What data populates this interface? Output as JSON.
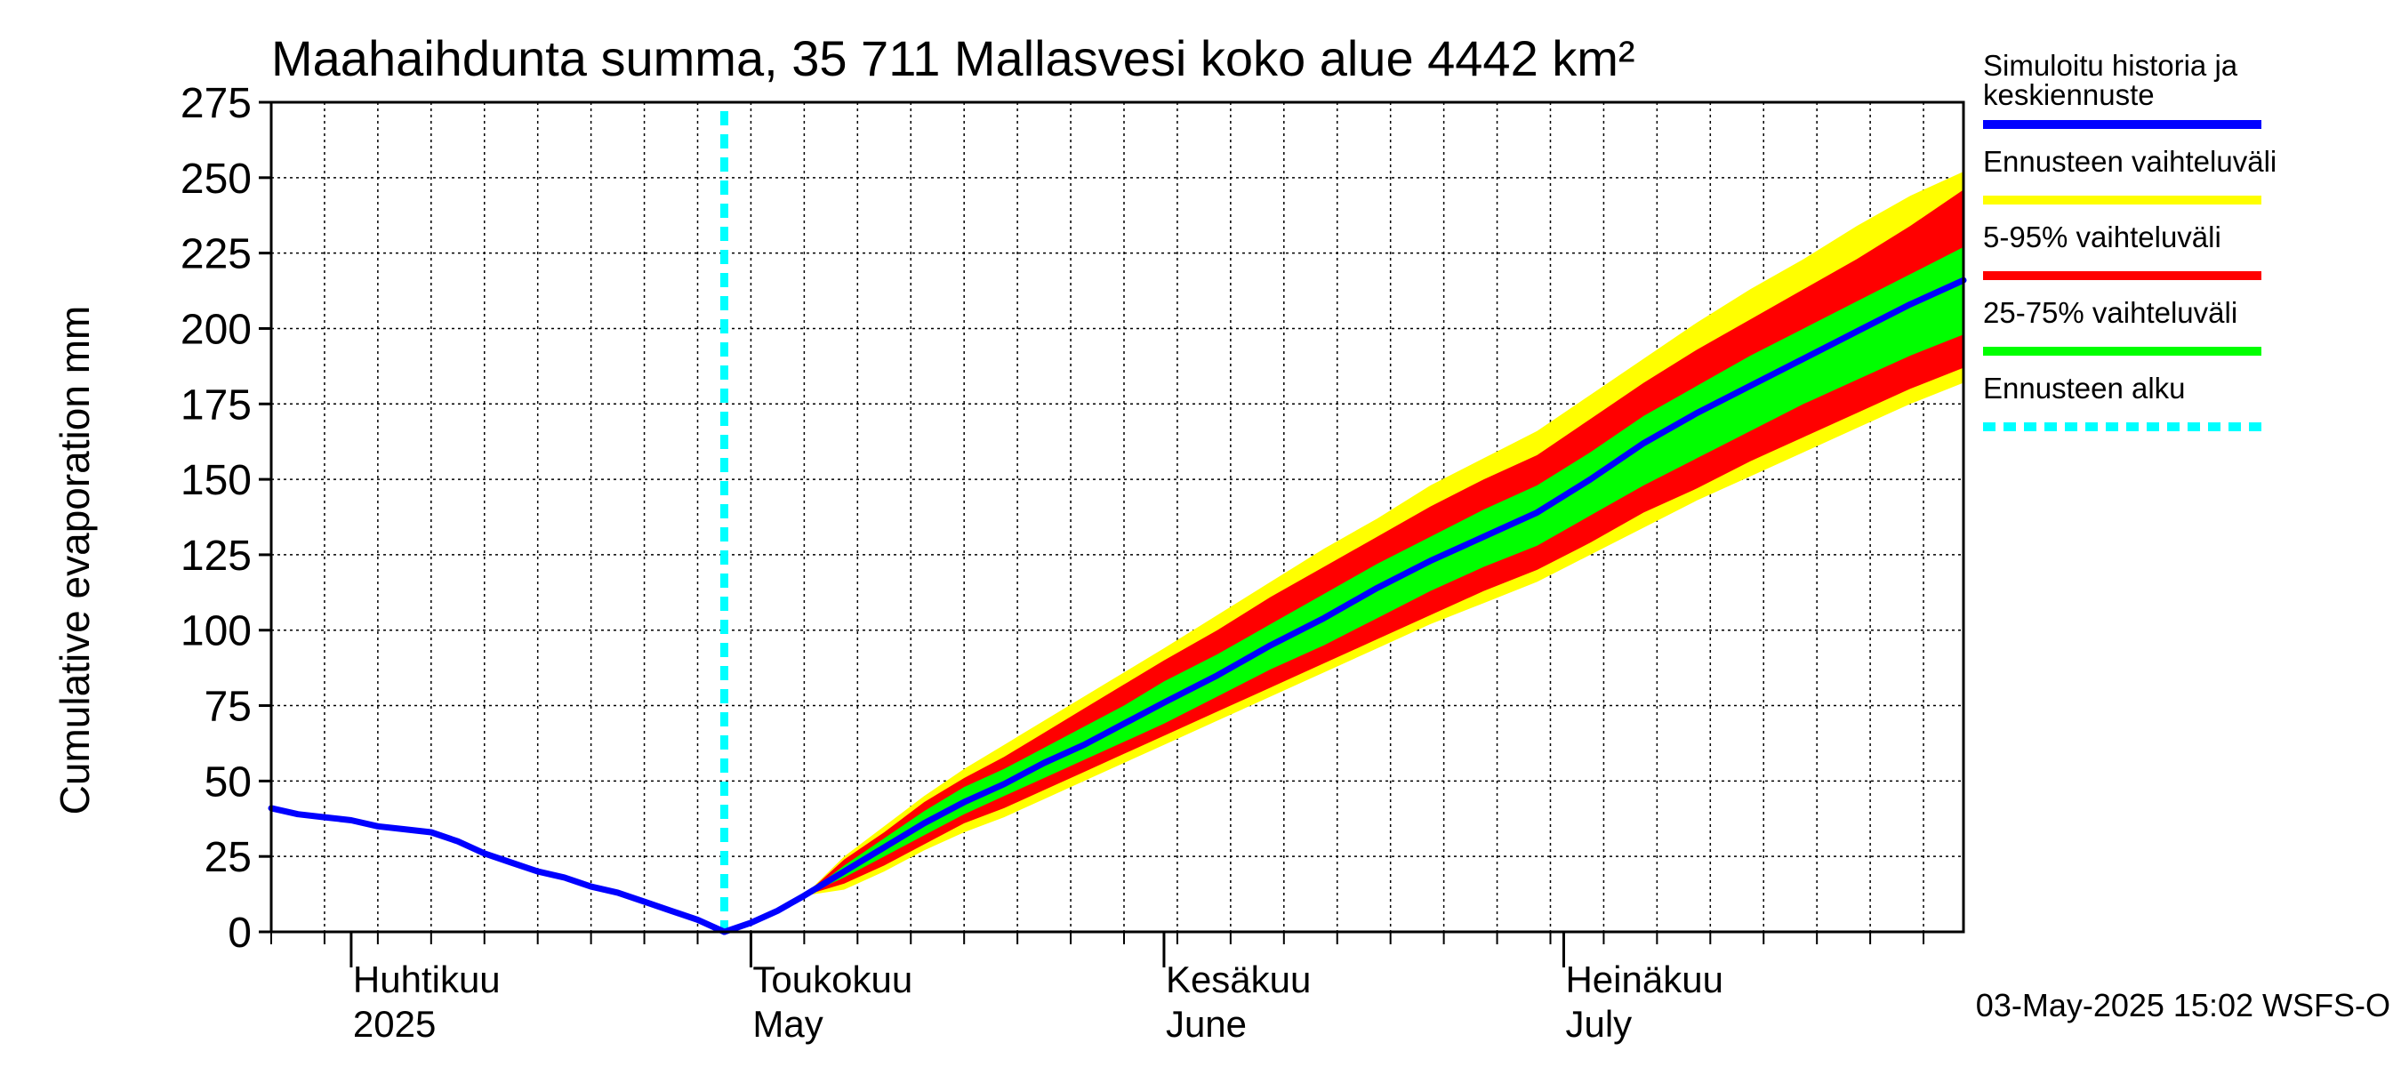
{
  "colors": {
    "background": "#ffffff",
    "grid": "#000000",
    "simulated": "#0000ff",
    "full_range": "#ffff00",
    "p5_95": "#ff0000",
    "p25_75": "#00ff00",
    "forecast_start": "#00ffff"
  },
  "chart_data": {
    "type": "area",
    "title": "Maahaihdunta summa, 35 711 Mallasvesi koko alue 4442 km²",
    "ylabel": "Cumulative evaporation   mm",
    "xlabel": "",
    "ylim": [
      0,
      275
    ],
    "yticks": [
      0,
      25,
      50,
      75,
      100,
      125,
      150,
      175,
      200,
      225,
      250,
      275
    ],
    "xlim": [
      "2025-03-26",
      "2025-07-31"
    ],
    "grid": true,
    "legend_position": "right",
    "x_axis_labels": [
      {
        "date": "2025-04-01",
        "line1": "Huhtikuu",
        "line2": "2025"
      },
      {
        "date": "2025-05-01",
        "line1": "Toukokuu",
        "line2": "May"
      },
      {
        "date": "2025-06-01",
        "line1": "Kesäkuu",
        "line2": "June"
      },
      {
        "date": "2025-07-01",
        "line1": "Heinäkuu",
        "line2": "July"
      }
    ],
    "forecast_start": "2025-04-29",
    "legend": [
      {
        "label_line1": "Simuloitu historia ja",
        "label_line2": "keskiennuste",
        "color_key": "simulated",
        "dash": false
      },
      {
        "label_line1": "Ennusteen vaihteluväli",
        "label_line2": "",
        "color_key": "full_range",
        "dash": false
      },
      {
        "label_line1": "5-95% vaihteluväli",
        "label_line2": "",
        "color_key": "p5_95",
        "dash": false
      },
      {
        "label_line1": "25-75% vaihteluväli",
        "label_line2": "",
        "color_key": "p25_75",
        "dash": false
      },
      {
        "label_line1": "Ennusteen alku",
        "label_line2": "",
        "color_key": "forecast_start",
        "dash": true
      }
    ],
    "history": {
      "x": [
        "2025-03-26",
        "2025-03-28",
        "2025-03-30",
        "2025-04-01",
        "2025-04-03",
        "2025-04-05",
        "2025-04-07",
        "2025-04-09",
        "2025-04-11",
        "2025-04-13",
        "2025-04-15",
        "2025-04-17",
        "2025-04-19",
        "2025-04-21",
        "2025-04-23",
        "2025-04-25",
        "2025-04-27",
        "2025-04-29"
      ],
      "y": [
        41,
        39,
        38,
        37,
        35,
        34,
        33,
        30,
        26,
        23,
        20,
        18,
        15,
        13,
        10,
        7,
        4,
        0
      ]
    },
    "forecast": {
      "x": [
        "2025-04-29",
        "2025-05-01",
        "2025-05-03",
        "2025-05-05",
        "2025-05-08",
        "2025-05-11",
        "2025-05-14",
        "2025-05-17",
        "2025-05-20",
        "2025-05-23",
        "2025-05-26",
        "2025-05-29",
        "2025-06-01",
        "2025-06-05",
        "2025-06-09",
        "2025-06-13",
        "2025-06-17",
        "2025-06-21",
        "2025-06-25",
        "2025-06-29",
        "2025-07-03",
        "2025-07-07",
        "2025-07-11",
        "2025-07-15",
        "2025-07-19",
        "2025-07-23",
        "2025-07-27",
        "2025-07-31"
      ],
      "median": [
        0,
        3,
        7,
        12,
        20,
        28,
        36,
        43,
        49,
        56,
        62,
        69,
        76,
        85,
        95,
        104,
        114,
        123,
        131,
        139,
        150,
        162,
        172,
        181,
        190,
        199,
        208,
        216
      ],
      "p25": [
        0,
        3,
        7,
        12,
        18,
        25,
        32,
        39,
        45,
        51,
        57,
        63,
        69,
        78,
        87,
        95,
        104,
        113,
        121,
        128,
        138,
        148,
        157,
        166,
        175,
        183,
        191,
        198
      ],
      "p75": [
        0,
        3,
        7,
        12,
        22,
        31,
        40,
        48,
        54,
        61,
        68,
        75,
        83,
        92,
        102,
        112,
        122,
        131,
        140,
        148,
        159,
        171,
        181,
        191,
        200,
        209,
        218,
        227
      ],
      "p5": [
        0,
        3,
        7,
        12,
        16,
        22,
        29,
        36,
        41,
        47,
        53,
        59,
        65,
        73,
        81,
        89,
        97,
        105,
        113,
        120,
        129,
        139,
        147,
        156,
        164,
        172,
        180,
        187
      ],
      "p95": [
        0,
        3,
        7,
        12,
        24,
        33,
        43,
        51,
        58,
        66,
        74,
        82,
        90,
        100,
        111,
        121,
        131,
        141,
        150,
        158,
        170,
        182,
        193,
        203,
        213,
        223,
        234,
        246
      ],
      "min": [
        0,
        3,
        7,
        12,
        14,
        20,
        27,
        33,
        38,
        44,
        50,
        56,
        62,
        70,
        78,
        86,
        94,
        102,
        109,
        116,
        125,
        134,
        143,
        151,
        159,
        167,
        175,
        182
      ],
      "max": [
        0,
        3,
        7,
        12,
        25,
        35,
        45,
        54,
        62,
        70,
        78,
        86,
        94,
        105,
        116,
        127,
        137,
        148,
        157,
        166,
        178,
        190,
        202,
        213,
        223,
        234,
        244,
        252
      ]
    }
  },
  "footer_text": "03-May-2025 15:02 WSFS-O"
}
